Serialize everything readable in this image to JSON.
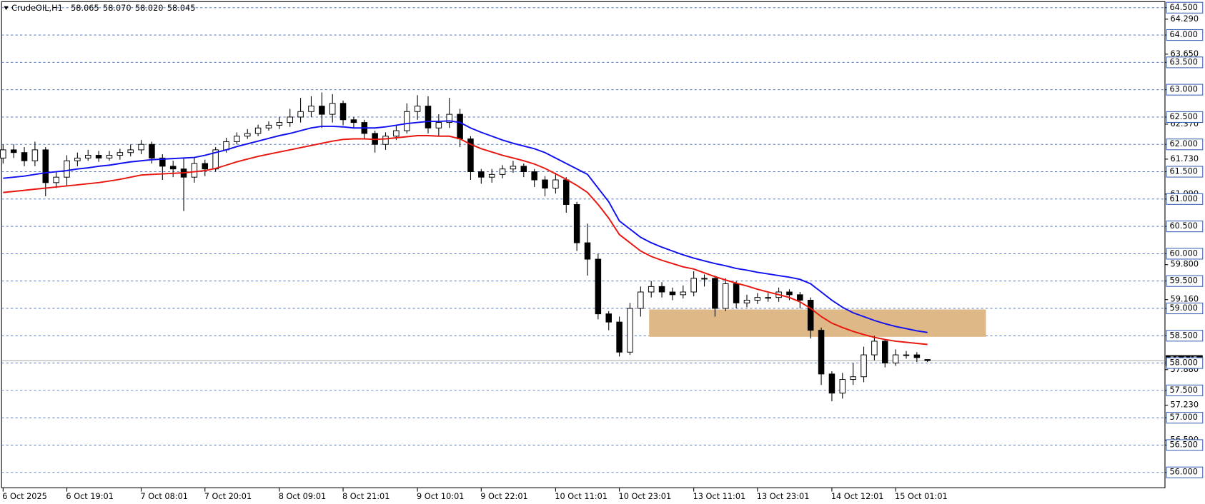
{
  "chart_data": {
    "type": "candlestick",
    "title": "CrudeOIL,H1",
    "title_values": [
      {
        "value": 58.065,
        "label": "58.065"
      },
      {
        "value": 58.07,
        "label": "58.070"
      },
      {
        "value": 58.02,
        "label": "58.020"
      },
      {
        "value": 58.045,
        "label": "58.045"
      }
    ],
    "categories": [
      "6 Oct 2025",
      null,
      null,
      null,
      null,
      null,
      "6 Oct 19:01",
      null,
      null,
      null,
      null,
      null,
      null,
      "7 Oct 08:01",
      null,
      null,
      null,
      null,
      null,
      "7 Oct 20:01",
      null,
      null,
      null,
      null,
      null,
      null,
      "8 Oct 09:01",
      null,
      null,
      null,
      null,
      null,
      "8 Oct 21:01",
      null,
      null,
      null,
      null,
      null,
      null,
      "9 Oct 10:01",
      null,
      null,
      null,
      null,
      null,
      "9 Oct 22:01",
      null,
      null,
      null,
      null,
      null,
      null,
      "10 Oct 11:01",
      null,
      null,
      null,
      null,
      null,
      "10 Oct 23:01",
      null,
      null,
      null,
      null,
      null,
      null,
      "13 Oct 11:01",
      null,
      null,
      null,
      null,
      null,
      "13 Oct 23:01",
      null,
      null,
      null,
      null,
      null,
      null,
      "14 Oct 12:01",
      null,
      null,
      null,
      null,
      null,
      "15 Oct 01:01",
      null,
      null,
      null
    ],
    "open": [
      61.75,
      61.9,
      61.85,
      61.7,
      61.9,
      61.3,
      61.4,
      61.7,
      61.75,
      61.8,
      61.75,
      61.8,
      61.85,
      61.9,
      62.0,
      61.75,
      61.6,
      61.55,
      61.4,
      61.65,
      61.55,
      61.9,
      62.05,
      62.15,
      62.2,
      62.3,
      62.35,
      62.4,
      62.5,
      62.6,
      62.7,
      62.55,
      62.75,
      62.45,
      62.4,
      62.2,
      62.0,
      62.15,
      62.25,
      62.6,
      62.7,
      62.3,
      62.4,
      62.55,
      62.1,
      61.5,
      61.4,
      61.45,
      61.55,
      61.6,
      61.5,
      61.35,
      61.2,
      61.35,
      60.9,
      60.2,
      59.9,
      58.9,
      58.75,
      58.2,
      59.0,
      59.3,
      59.4,
      59.3,
      59.25,
      59.3,
      59.55,
      59.55,
      59.0,
      59.45,
      59.1,
      59.15,
      59.2,
      59.2,
      59.3,
      59.25,
      59.15,
      58.6,
      57.8,
      57.45,
      57.7,
      57.75,
      58.15,
      58.4,
      58.0,
      58.15,
      58.15,
      58.065
    ],
    "high": [
      62.0,
      62.0,
      61.95,
      62.05,
      61.95,
      61.5,
      61.8,
      61.85,
      61.9,
      61.88,
      61.88,
      61.92,
      62.0,
      62.08,
      62.05,
      61.82,
      61.7,
      61.75,
      61.75,
      61.72,
      61.95,
      62.12,
      62.22,
      62.28,
      62.36,
      62.42,
      62.5,
      62.65,
      62.85,
      62.88,
      62.95,
      62.92,
      62.8,
      62.5,
      62.45,
      62.25,
      62.22,
      62.35,
      62.75,
      62.9,
      62.88,
      62.55,
      62.85,
      62.65,
      62.15,
      61.55,
      61.55,
      61.62,
      61.7,
      61.65,
      61.55,
      61.42,
      61.48,
      61.4,
      60.95,
      60.55,
      60.0,
      58.95,
      58.85,
      59.1,
      59.4,
      59.5,
      59.48,
      59.38,
      59.42,
      59.68,
      59.62,
      59.6,
      59.55,
      59.5,
      59.25,
      59.28,
      59.28,
      59.38,
      59.35,
      59.3,
      59.2,
      58.65,
      57.85,
      57.82,
      58.0,
      58.3,
      58.5,
      58.42,
      58.25,
      58.22,
      58.2,
      58.07
    ],
    "low": [
      61.65,
      61.75,
      61.6,
      61.6,
      61.05,
      61.2,
      61.25,
      61.6,
      61.7,
      61.68,
      61.7,
      61.72,
      61.78,
      61.82,
      61.65,
      61.35,
      61.4,
      60.78,
      61.3,
      61.42,
      61.5,
      61.85,
      62.0,
      62.1,
      62.15,
      62.25,
      62.28,
      62.32,
      62.4,
      62.5,
      62.3,
      62.4,
      62.35,
      62.3,
      62.1,
      61.85,
      61.9,
      62.08,
      62.2,
      62.45,
      62.2,
      62.15,
      62.3,
      61.95,
      61.35,
      61.28,
      61.3,
      61.38,
      61.48,
      61.4,
      61.22,
      61.05,
      61.1,
      60.75,
      60.05,
      59.6,
      58.8,
      58.6,
      58.12,
      58.15,
      58.85,
      59.2,
      59.2,
      59.15,
      59.18,
      59.22,
      59.4,
      58.85,
      58.95,
      59.0,
      59.02,
      59.08,
      59.12,
      59.12,
      59.15,
      59.0,
      58.45,
      57.6,
      57.3,
      57.35,
      57.6,
      57.65,
      58.05,
      57.92,
      57.95,
      58.08,
      58.02,
      58.02
    ],
    "close": [
      61.9,
      61.85,
      61.7,
      61.9,
      61.3,
      61.4,
      61.7,
      61.75,
      61.8,
      61.75,
      61.8,
      61.85,
      61.9,
      62.0,
      61.75,
      61.6,
      61.55,
      61.4,
      61.65,
      61.55,
      61.9,
      62.05,
      62.15,
      62.2,
      62.3,
      62.35,
      62.4,
      62.5,
      62.6,
      62.7,
      62.55,
      62.75,
      62.45,
      62.4,
      62.2,
      62.0,
      62.15,
      62.25,
      62.6,
      62.7,
      62.3,
      62.4,
      62.55,
      62.1,
      61.5,
      61.4,
      61.45,
      61.55,
      61.6,
      61.5,
      61.35,
      61.2,
      61.35,
      60.9,
      60.2,
      59.9,
      58.9,
      58.75,
      58.2,
      59.0,
      59.3,
      59.4,
      59.3,
      59.25,
      59.3,
      59.55,
      59.55,
      59.0,
      59.45,
      59.1,
      59.15,
      59.2,
      59.2,
      59.3,
      59.25,
      59.15,
      58.6,
      57.8,
      57.45,
      57.7,
      57.75,
      58.15,
      58.4,
      58.0,
      58.15,
      58.15,
      58.1,
      58.045
    ],
    "series": [
      {
        "color": "#1010f0",
        "values": [
          61.38,
          61.4,
          61.42,
          61.45,
          61.48,
          61.5,
          61.52,
          61.55,
          61.57,
          61.6,
          61.62,
          61.65,
          61.68,
          61.7,
          61.72,
          61.73,
          61.74,
          61.75,
          61.76,
          61.8,
          61.85,
          61.9,
          61.96,
          62.01,
          62.06,
          62.11,
          62.16,
          62.2,
          62.25,
          62.3,
          62.33,
          62.33,
          62.32,
          62.3,
          62.3,
          62.3,
          62.32,
          62.35,
          62.38,
          62.4,
          62.42,
          62.42,
          62.43,
          62.4,
          62.3,
          62.22,
          62.15,
          62.08,
          62.02,
          61.97,
          61.92,
          61.85,
          61.75,
          61.65,
          61.55,
          61.45,
          61.2,
          60.95,
          60.6,
          60.45,
          60.3,
          60.2,
          60.12,
          60.05,
          59.98,
          59.92,
          59.87,
          59.82,
          59.78,
          59.73,
          59.7,
          59.66,
          59.63,
          59.6,
          59.57,
          59.53,
          59.45,
          59.3,
          59.15,
          59.02,
          58.92,
          58.85,
          58.78,
          58.72,
          58.67,
          58.63,
          58.59,
          58.56
        ]
      },
      {
        "color": "#e8160e",
        "values": [
          61.12,
          61.14,
          61.16,
          61.18,
          61.2,
          61.22,
          61.24,
          61.26,
          61.28,
          61.3,
          61.33,
          61.36,
          61.4,
          61.44,
          61.45,
          61.46,
          61.47,
          61.48,
          61.5,
          61.52,
          61.56,
          61.62,
          61.68,
          61.73,
          61.78,
          61.82,
          61.86,
          61.9,
          61.94,
          61.98,
          62.02,
          62.06,
          62.09,
          62.1,
          62.1,
          62.09,
          62.1,
          62.12,
          62.14,
          62.16,
          62.16,
          62.15,
          62.15,
          62.1,
          62.0,
          61.92,
          61.86,
          61.8,
          61.75,
          61.7,
          61.64,
          61.56,
          61.46,
          61.36,
          61.25,
          61.12,
          60.9,
          60.65,
          60.35,
          60.2,
          60.05,
          59.95,
          59.88,
          59.82,
          59.76,
          59.72,
          59.65,
          59.58,
          59.52,
          59.46,
          59.41,
          59.35,
          59.3,
          59.25,
          59.2,
          59.12,
          59.0,
          58.85,
          58.73,
          58.65,
          58.58,
          58.52,
          58.47,
          58.43,
          58.4,
          58.38,
          58.36,
          58.34
        ]
      }
    ],
    "zone": {
      "color": "#deb887",
      "ylim": [
        58.48,
        58.98
      ],
      "x_range": [
        60.8,
        92.5
      ]
    },
    "ylim": [
      55.72,
      64.61
    ],
    "yticks": [
      {
        "value": 64.5,
        "label": "64.500"
      },
      {
        "value": 64,
        "label": "64.000"
      },
      {
        "value": 63.5,
        "label": "63.500"
      },
      {
        "value": 63,
        "label": "63.000"
      },
      {
        "value": 62.5,
        "label": "62.500"
      },
      {
        "value": 62,
        "label": "62.000"
      },
      {
        "value": 61.5,
        "label": "61.500"
      },
      {
        "value": 61,
        "label": "61.000"
      },
      {
        "value": 60.5,
        "label": "60.500"
      },
      {
        "value": 60,
        "label": "60.000"
      },
      {
        "value": 59.5,
        "label": "59.500"
      },
      {
        "value": 59,
        "label": "59.000"
      },
      {
        "value": 58.5,
        "label": "58.500"
      },
      {
        "value": 58,
        "label": "58.000"
      },
      {
        "value": 57.5,
        "label": "57.500"
      },
      {
        "value": 57,
        "label": "57.000"
      },
      {
        "value": 56.5,
        "label": "56.500"
      },
      {
        "value": 56,
        "label": "56.000"
      }
    ],
    "yticks_minor": [
      {
        "value": 64.29,
        "label": "64.290"
      },
      {
        "value": 63.65,
        "label": "63.650"
      },
      {
        "value": 62.37,
        "label": "62.370"
      },
      {
        "value": 61.73,
        "label": "61.730"
      },
      {
        "value": 61.09,
        "label": "61.090"
      },
      {
        "value": 59.8,
        "label": "59.800"
      },
      {
        "value": 59.16,
        "label": "59.160"
      },
      {
        "value": 57.88,
        "label": "57.880"
      },
      {
        "value": 57.23,
        "label": "57.230"
      },
      {
        "value": 56.59,
        "label": "56.590"
      }
    ],
    "current_price": {
      "value": 58.045,
      "label": "58.045"
    },
    "grid": true
  }
}
